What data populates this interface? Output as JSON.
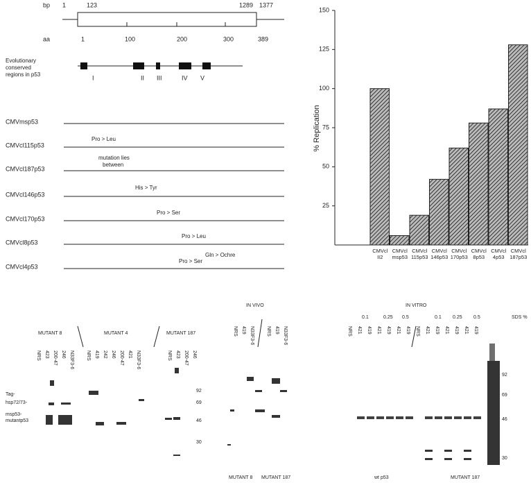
{
  "diagram": {
    "bp_label": "bp",
    "bp_marks": [
      1,
      123,
      1289,
      1377
    ],
    "aa_label": "aa",
    "aa_marks": [
      1,
      100,
      200,
      300,
      389
    ],
    "conserved_label": [
      "Evolutionary",
      "conserved",
      "regions in p53"
    ],
    "regions": [
      "I",
      "II",
      "III",
      "IV",
      "V"
    ],
    "constructs": [
      {
        "name": "CMVmsp53",
        "notes": []
      },
      {
        "name": "CMVcl115p53",
        "notes": [
          "Pro > Leu"
        ]
      },
      {
        "name": "CMVcl187p53",
        "notes": [
          "mutation lies",
          "between"
        ]
      },
      {
        "name": "CMVcl146p53",
        "notes": [
          "His > Tyr"
        ]
      },
      {
        "name": "CMVcl170p53",
        "notes": [
          "Pro > Ser"
        ]
      },
      {
        "name": "CMVcl8p53",
        "notes": [
          "Pro > Leu"
        ]
      },
      {
        "name": "CMVcl4p53",
        "notes": [
          "Pro > Ser",
          "Gln > Ochre"
        ]
      }
    ]
  },
  "chart_data": {
    "type": "bar",
    "y_label": "% Replication",
    "categories": [
      "CMVcl II2",
      "CMVcl msp53",
      "CMVcl 115p53",
      "CMVcl 146p53",
      "CMVcl 170p53",
      "CMVcl 8p53",
      "CMVcl 4p53",
      "CMVcl 187p53"
    ],
    "values": [
      100,
      6,
      19,
      42,
      62,
      78,
      87,
      128
    ],
    "color": "#333333",
    "ylim": [
      0,
      150
    ],
    "yticks": [
      25,
      50,
      75,
      100,
      125,
      150
    ]
  },
  "blots": {
    "panel1": {
      "groups": [
        {
          "title": "MUTANT 8",
          "lanes": [
            "NRS",
            "423",
            "200-47",
            "246",
            "N33F3-6"
          ]
        },
        {
          "title": "MUTANT 4",
          "lanes": [
            "NRS",
            "419",
            "242",
            "246",
            "200-47",
            "421",
            "N33F3-6"
          ]
        },
        {
          "title": "MUTANT 187",
          "lanes": [
            "NRS",
            "423",
            "200-47",
            "246"
          ]
        }
      ],
      "markers": [
        92,
        69,
        46,
        30
      ],
      "side_labels": [
        "Tag-",
        "hsp72/73-",
        "msp53-",
        "mutantp53"
      ]
    },
    "in_vivo": {
      "title": "IN VIVO",
      "lanes": [
        "NRS",
        "419",
        "N33F3-6",
        "NRS",
        "419",
        "N33F3-6"
      ],
      "bottom": [
        "MUTANT 8",
        "MUTANT 187"
      ]
    },
    "in_vitro": {
      "title": "IN VITRO",
      "sds": [
        0.1,
        0.25,
        0.5,
        0.1,
        0.25,
        0.5
      ],
      "sds_label": "SDS %",
      "lanes": [
        "NRS",
        "421",
        "419",
        "421",
        "419",
        "421",
        "419",
        "NRS",
        "421",
        "419",
        "421",
        "419",
        "421",
        "419"
      ],
      "markers": [
        92,
        69,
        46,
        30
      ],
      "bottom": [
        "wt p53",
        "MUTANT 187"
      ]
    }
  }
}
